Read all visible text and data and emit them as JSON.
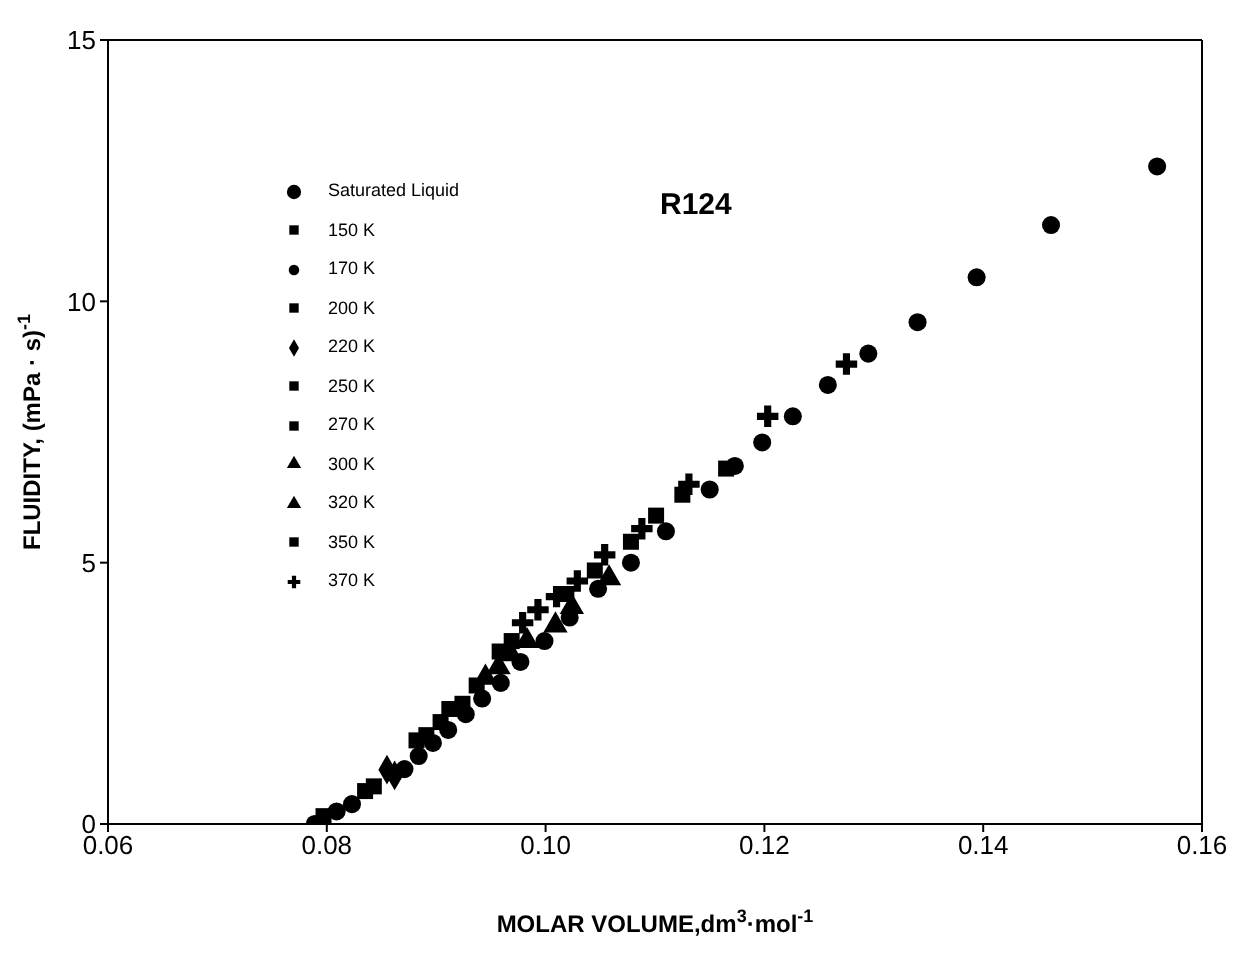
{
  "chart_data": {
    "type": "scatter",
    "title": "R124",
    "xlabel": "MOLAR VOLUME,dm$^{3}$·mol$^{-1}$",
    "ylabel": "FLUIDITY, (mPa · s)$^{-1}$",
    "xlim": [
      0.06,
      0.16
    ],
    "xticks": [
      0.06,
      0.08,
      {
        "value": 0.1,
        "label": "0.10"
      },
      0.12,
      0.14,
      0.16
    ],
    "ylim": [
      0,
      15
    ],
    "yticks": [
      0,
      5,
      10,
      15
    ],
    "grid": false,
    "legend": "top left",
    "series": [
      {
        "name": "Saturated Liquid",
        "color": "#000000",
        "marker": "circle",
        "x": [
          0.0789,
          0.0823,
          0.0871,
          0.0884,
          0.0897,
          0.0911,
          0.0927,
          0.0942,
          0.0959,
          0.0977,
          0.0999,
          0.1022,
          0.1048,
          0.1078,
          0.111,
          0.115,
          0.1173,
          0.1198,
          0.1226,
          0.1258,
          0.1295,
          0.134,
          0.1394,
          0.1462,
          0.1559
        ],
        "values": [
          0,
          0.38,
          1.05,
          1.3,
          1.55,
          1.8,
          2.1,
          2.4,
          2.7,
          3.1,
          3.5,
          3.95,
          4.5,
          5,
          5.6,
          6.4,
          6.85,
          7.3,
          7.8,
          8.4,
          9,
          9.6,
          10.46,
          11.46,
          12.58
        ]
      },
      {
        "name": "150 K",
        "color": "#000000",
        "marker": "square",
        "x": [
          0.0797
        ],
        "values": [
          0.15
        ]
      },
      {
        "name": "170 K",
        "color": "#000000",
        "marker": "circle",
        "x": [
          0.0809
        ],
        "values": [
          0.24
        ]
      },
      {
        "name": "200 K",
        "color": "#000000",
        "marker": "square",
        "x": [
          0.0835,
          0.0843
        ],
        "values": [
          0.63,
          0.72
        ]
      },
      {
        "name": "220 K",
        "color": "#000000",
        "marker": "diamond",
        "x": [
          0.0855,
          0.0862
        ],
        "values": [
          1.04,
          0.93
        ]
      },
      {
        "name": "250 K",
        "color": "#000000",
        "marker": "square",
        "x": [
          0.0882,
          0.0891,
          0.0904
        ],
        "values": [
          1.6,
          1.7,
          1.95
        ]
      },
      {
        "name": "270 K",
        "color": "#000000",
        "marker": "square",
        "x": [
          0.0912,
          0.0924,
          0.0937
        ],
        "values": [
          2.2,
          2.3,
          2.65
        ]
      },
      {
        "name": "300 K",
        "color": "#000000",
        "marker": "triangle",
        "x": [
          0.0945,
          0.0957
        ],
        "values": [
          2.8,
          3
        ]
      },
      {
        "name": "320 K",
        "color": "#000000",
        "marker": "triangle",
        "x": [
          0.0968,
          0.0983,
          0.1009,
          0.1024,
          0.1058
        ],
        "values": [
          3.25,
          3.5,
          3.8,
          4.15,
          4.7
        ]
      },
      {
        "name": "350 K",
        "color": "#000000",
        "marker": "square",
        "x": [
          0.0958,
          0.0969,
          0.0986,
          0.0998,
          0.1019,
          0.1045,
          0.1078,
          0.1101,
          0.1125,
          0.1165
        ],
        "values": [
          3.3,
          3.5,
          null,
          null,
          4.4,
          4.85,
          5.4,
          5.9,
          6.3,
          6.8
        ]
      },
      {
        "name": "370 K",
        "color": "#000000",
        "marker": "cross",
        "x": [
          0.0979,
          0.0993,
          0.101,
          0.1029,
          0.1054,
          0.1088,
          0.1131,
          0.1203,
          0.1275
        ],
        "values": [
          3.85,
          4.1,
          4.35,
          4.65,
          5.15,
          5.65,
          6.5,
          7.8,
          8.8
        ]
      }
    ]
  }
}
